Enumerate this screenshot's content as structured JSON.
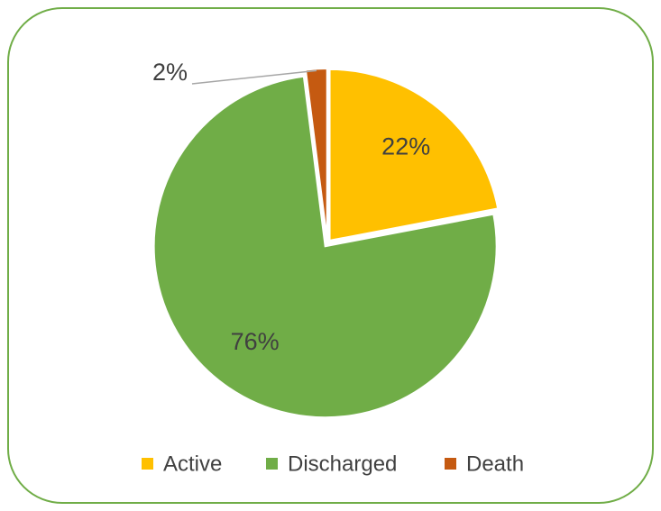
{
  "chart_data": {
    "type": "pie",
    "categories": [
      "Active",
      "Discharged",
      "Death"
    ],
    "values": [
      22,
      76,
      2
    ],
    "value_labels": [
      "22%",
      "76%",
      "2%"
    ],
    "colors": [
      "#ffc000",
      "#70ad47",
      "#c55a11"
    ],
    "legend": "bottom"
  }
}
